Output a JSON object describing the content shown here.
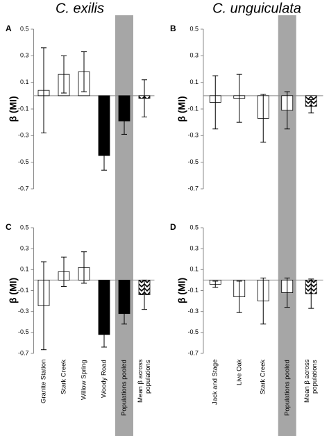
{
  "chart_data": [
    {
      "type": "bar",
      "title": "C. exilis",
      "panel": "A",
      "ylabel": "β (MI)",
      "categories": [
        null,
        null,
        null,
        null,
        null,
        null
      ],
      "values": [
        0.04,
        0.16,
        0.18,
        -0.45,
        -0.19,
        -0.02
      ],
      "errors": [
        0.32,
        0.14,
        0.15,
        0.11,
        0.1,
        0.14
      ],
      "colors": [
        "#ffffff",
        "#ffffff",
        "#ffffff",
        "#000000",
        "#000000",
        "hatched"
      ],
      "highlight_index": 4,
      "highlight_color": "#a6a6a6",
      "ylim": [
        -0.7,
        0.5
      ],
      "yticks": [
        0.5,
        0.3,
        0.1,
        -0.1,
        -0.3,
        -0.5,
        -0.7
      ]
    },
    {
      "type": "bar",
      "title": "C. unguiculata",
      "panel": "B",
      "ylabel": "β (MI)",
      "categories": [
        null,
        null,
        null,
        null,
        null
      ],
      "values": [
        -0.05,
        -0.02,
        -0.17,
        -0.11,
        -0.08
      ],
      "errors": [
        0.2,
        0.18,
        0.18,
        0.14,
        0.05
      ],
      "colors": [
        "#ffffff",
        "#ffffff",
        "#ffffff",
        "#ffffff",
        "hatched"
      ],
      "highlight_index": 3,
      "highlight_color": "#a6a6a6",
      "ylim": [
        -0.7,
        0.5
      ],
      "yticks": [
        0.5,
        0.3,
        0.1,
        -0.1,
        -0.3,
        -0.5,
        -0.7
      ]
    },
    {
      "type": "bar",
      "panel": "C",
      "ylabel": "β (MI)",
      "categories": [
        "Granite Station",
        "Stark Creek",
        "Willow Spring",
        "Woody Road",
        "Populations pooled",
        "Mean β across populations"
      ],
      "values": [
        -0.245,
        0.08,
        0.12,
        -0.52,
        -0.32,
        -0.14
      ],
      "errors": [
        0.42,
        0.14,
        0.15,
        0.12,
        0.1,
        0.14
      ],
      "colors": [
        "#ffffff",
        "#ffffff",
        "#ffffff",
        "#000000",
        "#000000",
        "hatched"
      ],
      "highlight_index": 4,
      "highlight_color": "#a6a6a6",
      "ylim": [
        -0.7,
        0.5
      ],
      "yticks": [
        0.5,
        0.3,
        0.1,
        -0.1,
        -0.3,
        -0.5,
        -0.7
      ]
    },
    {
      "type": "bar",
      "panel": "D",
      "ylabel": "β (MI)",
      "categories": [
        "Jack and Stage",
        "Live Oak",
        "Stark Creek",
        "Populations pooled",
        "Mean β across populations"
      ],
      "values": [
        -0.04,
        -0.16,
        -0.2,
        -0.12,
        -0.13
      ],
      "errors": [
        0.03,
        0.15,
        0.22,
        0.14,
        0.14
      ],
      "colors": [
        "#ffffff",
        "#ffffff",
        "#ffffff",
        "#ffffff",
        "hatched"
      ],
      "highlight_index": 3,
      "highlight_color": "#a6a6a6",
      "ylim": [
        -0.7,
        0.5
      ],
      "yticks": [
        0.5,
        0.3,
        0.1,
        -0.1,
        -0.3,
        -0.5,
        -0.7
      ]
    }
  ]
}
